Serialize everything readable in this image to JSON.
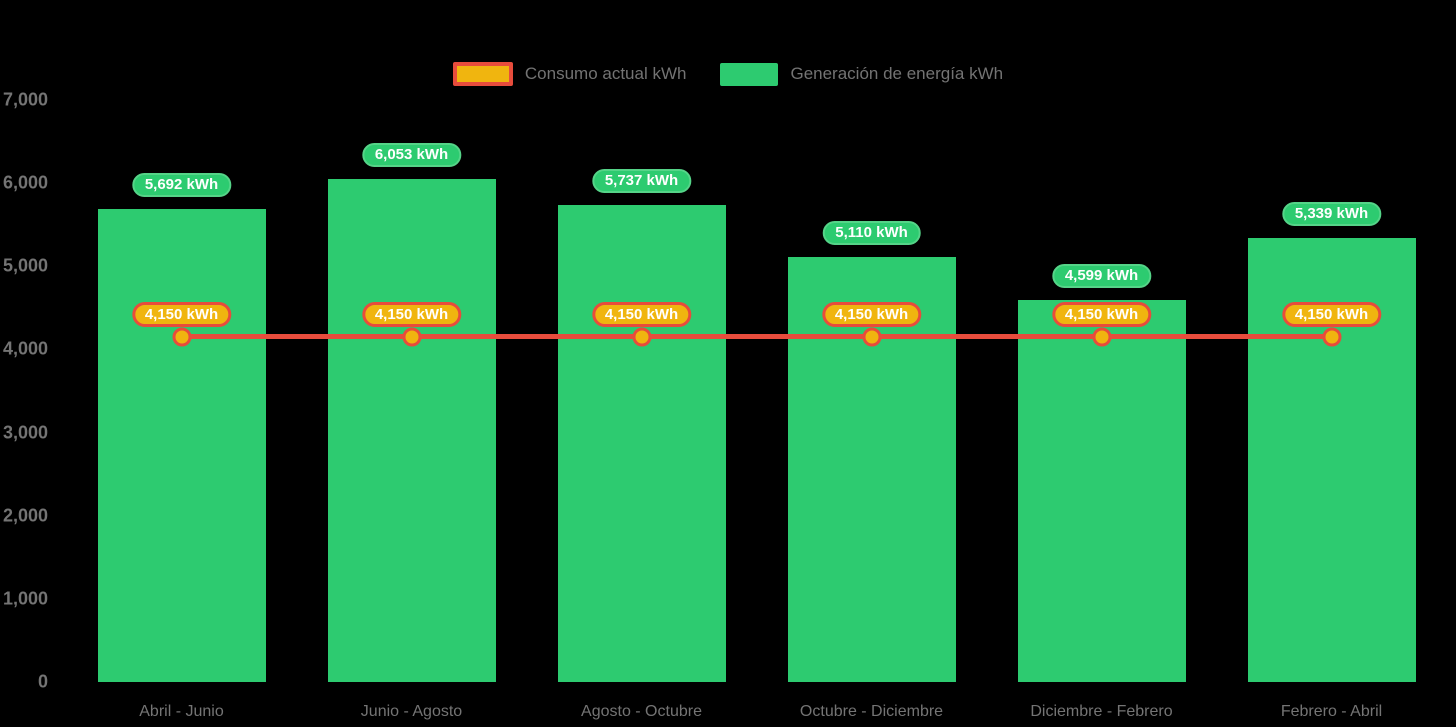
{
  "legend": {
    "items": [
      {
        "id": "consumo",
        "label": "Consumo actual kWh",
        "swatch_fill": "#F0B50F",
        "swatch_border": "#E74C3C"
      },
      {
        "id": "generacion",
        "label": "Generación de energía kWh",
        "swatch_fill": "#2DCB70"
      }
    ]
  },
  "colors": {
    "background": "#000000",
    "bar_green": "#2DCB70",
    "pill_green_border": "#55D488",
    "line_red": "#E74C3C",
    "marker_gold": "#F0B50F",
    "axis_text": "#747474",
    "legend_text": "#737373",
    "label_text": "#FFFFFF"
  },
  "chart_data": {
    "type": "bar",
    "title": "",
    "xlabel": "",
    "ylabel": "",
    "categories": [
      "Abril - Junio",
      "Junio - Agosto",
      "Agosto - Octubre",
      "Octubre - Diciembre",
      "Diciembre - Febrero",
      "Febrero - Abril"
    ],
    "series": [
      {
        "name": "Generación de energía kWh",
        "type": "bar",
        "color": "#2DCB70",
        "values": [
          5692,
          6053,
          5737,
          5110,
          4599,
          5339
        ],
        "data_labels": [
          "5,692 kWh",
          "6,053 kWh",
          "5,737 kWh",
          "5,110 kWh",
          "4,599 kWh",
          "5,339 kWh"
        ]
      },
      {
        "name": "Consumo actual kWh",
        "type": "line",
        "color": "#E74C3C",
        "marker_color": "#F0B50F",
        "values": [
          4150,
          4150,
          4150,
          4150,
          4150,
          4150
        ],
        "data_labels": [
          "4,150 kWh",
          "4,150 kWh",
          "4,150 kWh",
          "4,150 kWh",
          "4,150 kWh",
          "4,150 kWh"
        ]
      }
    ],
    "ylim": [
      0,
      7000
    ],
    "ytick_labels": [
      "0",
      "1,000",
      "2,000",
      "3,000",
      "4,000",
      "5,000",
      "6,000",
      "7,000"
    ],
    "grid": false,
    "legend_position": "top"
  }
}
